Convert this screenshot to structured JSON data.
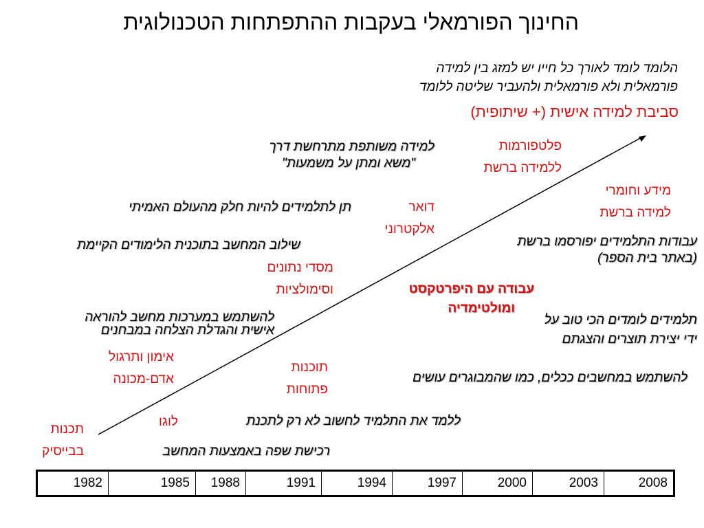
{
  "title": "החינוך הפורמאלי בעקבות ההתפתחות הטכנולוגית",
  "intro": [
    "הלומד לומד לאורך כל חייו יש למזג בין למידה",
    "פורמאלית ולא פורמאלית ולהעביר שליטה ללומד"
  ],
  "environment": "סביבת למידה אישית (+ שיתופית)",
  "italic_items": {
    "shared_learning": [
      "למידה משותפת מתרחשת דרך",
      "\"משא ומתן על משמעות\""
    ],
    "real_world": "תן לתלמידים להיות חלק מהעולם האמיתי",
    "integration": "שילוב המחשב בתוכנית הלימודים הקיימת",
    "publish_works": [
      "עבודות התלמידים יפורסמו ברשת",
      "(באתר בית הספר)"
    ],
    "computer_systems": [
      "להשתמש במערכות מחשב להוראה",
      "אישית והגדלת הצלחה במבחנים"
    ],
    "best_learning": [
      "תלמידים לומדים הכי טוב על",
      "ידי יצירת תוצרים והצגתם"
    ],
    "computers_as_tools": "להשתמש במחשבים ככלים, כמו שהמבוגרים עושים",
    "teach_thinking": "ללמד את התלמיד לחשוב לא רק לתכנת",
    "language_acquisition": "רכישת שפה באמצעות המחשב"
  },
  "red_items": {
    "platforms": [
      "פלטפורמות",
      "ללמידה ברשת"
    ],
    "knowledge_online": [
      "מידע וחומרי",
      "למידה ברשת"
    ],
    "email": [
      "דואר",
      "אלקטרוני"
    ],
    "databases": [
      "מסדי נתונים",
      "וסימולציות"
    ],
    "hypertext": [
      "עבודה עם היפרטקסט",
      "ומולטימדיה"
    ],
    "drill": [
      "אימון ותרגול",
      "אדם-מכונה"
    ],
    "open_software": [
      "תוכנות",
      "פתוחות"
    ],
    "logo": "לוגו",
    "basic": [
      "תכנות",
      "בבייסיק"
    ]
  },
  "years": [
    "1982",
    "1985",
    "1988",
    "1991",
    "1994",
    "1997",
    "2000",
    "2003",
    "2008"
  ],
  "colors": {
    "red": "#d81010",
    "text": "#000000"
  }
}
